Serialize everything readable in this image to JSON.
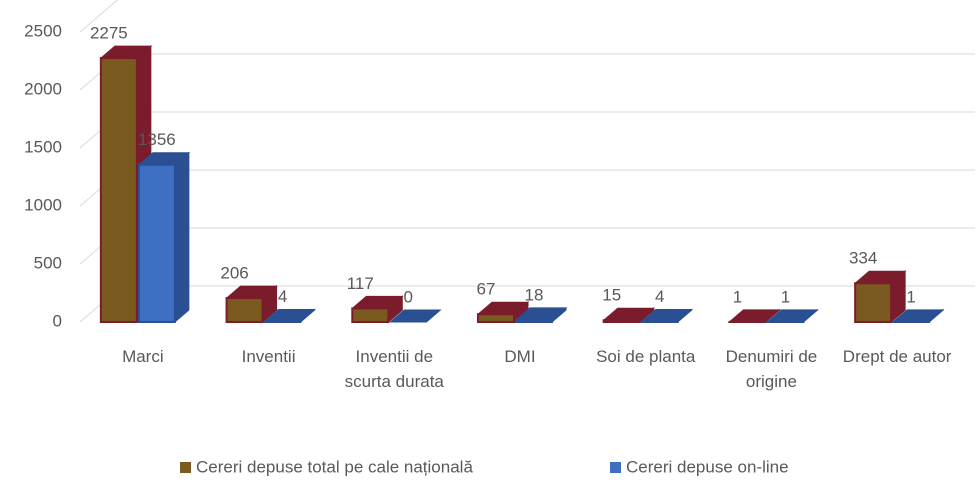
{
  "chart_data": {
    "type": "bar3d",
    "categories": [
      "Marci",
      "Inventii",
      "Inventii de scurta durata",
      "DMI",
      "Soi de planta",
      "Denumiri de origine",
      "Drept de autor"
    ],
    "series": [
      {
        "name": "Cereri depuse total pe cale națională",
        "color": "#7a5a1e",
        "edge": "#7b1c2c",
        "values": [
          2275,
          206,
          117,
          67,
          15,
          1,
          334
        ]
      },
      {
        "name": "Cereri depuse on-line",
        "color": "#3f6fc3",
        "edge": "#2a4f93",
        "values": [
          1356,
          4,
          0,
          18,
          4,
          1,
          1
        ]
      }
    ],
    "ylim": [
      0,
      2500
    ],
    "yticks": [
      0,
      500,
      1000,
      1500,
      2000,
      2500
    ],
    "grid": true,
    "legend": "bottom"
  }
}
